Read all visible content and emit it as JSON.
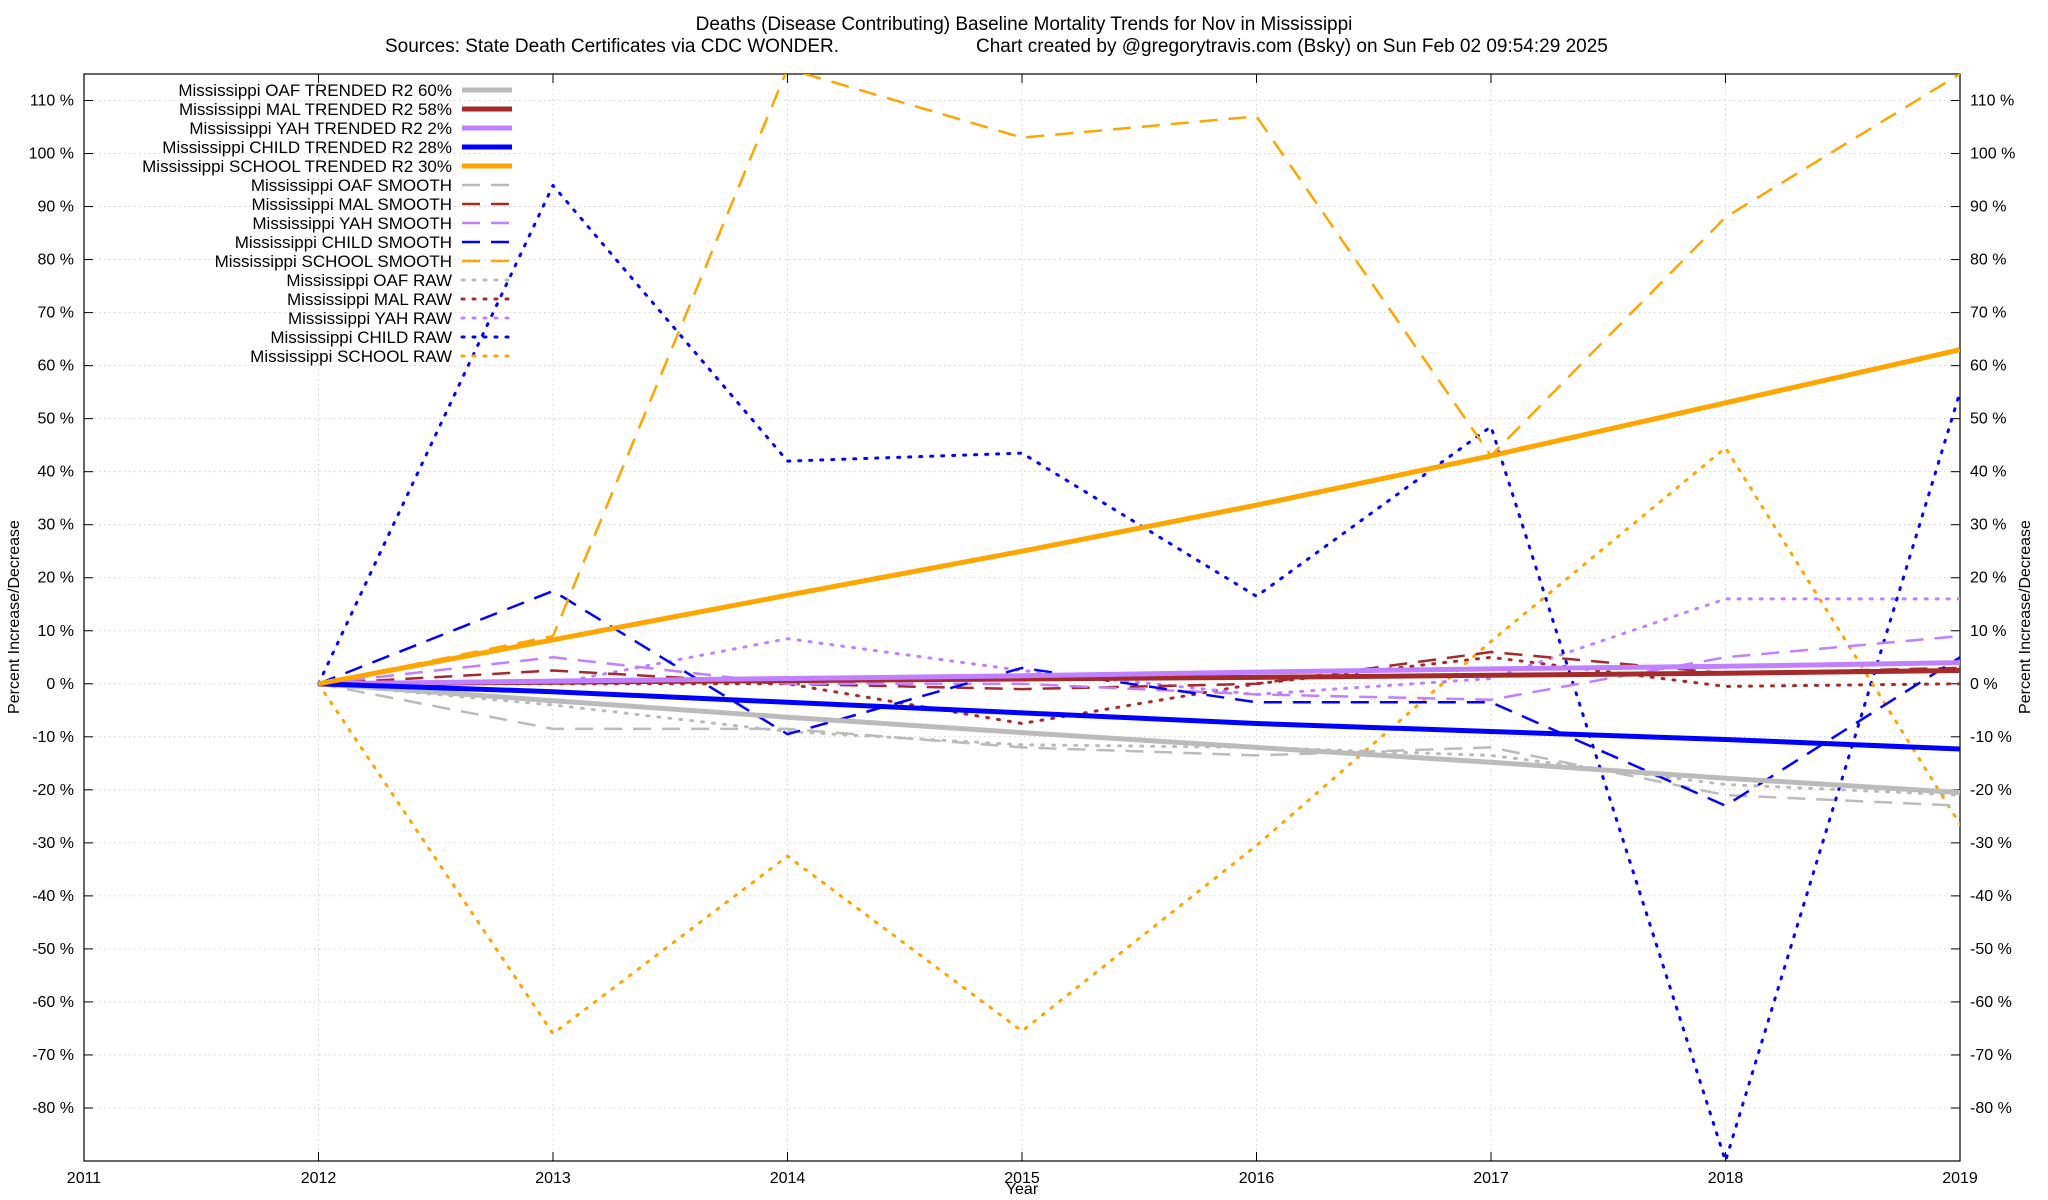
{
  "chart_data": {
    "type": "line",
    "title": "Deaths (Disease Contributing)  Baseline Mortality Trends for Nov in Mississippi",
    "subtitle_left": "Sources: State Death Certificates via CDC WONDER.",
    "subtitle_right": "Chart created by @gregorytravis.com (Bsky) on Sun Feb 02 09:54:29 2025",
    "xlabel": "Year",
    "ylabel_left": "Percent Increase/Decrease",
    "ylabel_right": "Percent Increase/Decrease",
    "xlim": [
      2011,
      2019
    ],
    "ylim": [
      -90,
      115
    ],
    "x_ticks": [
      "2011",
      "2012",
      "2013",
      "2014",
      "2015",
      "2016",
      "2017",
      "2018",
      "2019"
    ],
    "y_ticks": [
      {
        "v": 110,
        "label": "110 %"
      },
      {
        "v": 100,
        "label": "100 %"
      },
      {
        "v": 90,
        "label": "90 %"
      },
      {
        "v": 80,
        "label": "80 %"
      },
      {
        "v": 70,
        "label": "70 %"
      },
      {
        "v": 60,
        "label": "60 %"
      },
      {
        "v": 50,
        "label": "50 %"
      },
      {
        "v": 40,
        "label": "40 %"
      },
      {
        "v": 30,
        "label": "30 %"
      },
      {
        "v": 20,
        "label": "20 %"
      },
      {
        "v": 10,
        "label": "10 %"
      },
      {
        "v": 0,
        "label": "0 %"
      },
      {
        "v": -10,
        "label": "-10 %"
      },
      {
        "v": -20,
        "label": "-20 %"
      },
      {
        "v": -30,
        "label": "-30 %"
      },
      {
        "v": -40,
        "label": "-40 %"
      },
      {
        "v": -50,
        "label": "-50 %"
      },
      {
        "v": -60,
        "label": "-60 %"
      },
      {
        "v": -70,
        "label": "-70 %"
      },
      {
        "v": -80,
        "label": "-80 %"
      }
    ],
    "grid": true,
    "legend_position": "top-left",
    "x": [
      2012,
      2013,
      2014,
      2015,
      2016,
      2017,
      2018,
      2019
    ],
    "series": [
      {
        "name": "Mississippi OAF TRENDED R2  60%",
        "style": "solid",
        "width": 5,
        "color": "#bbbbbb",
        "values": [
          0,
          -3.2,
          -6.3,
          -9.2,
          -12,
          -14.8,
          -17.8,
          -20.5
        ]
      },
      {
        "name": "Mississippi MAL TRENDED R2  58%",
        "style": "solid",
        "width": 5,
        "color": "#a52a2a",
        "values": [
          0,
          0.3,
          0.6,
          0.9,
          1.2,
          1.6,
          2,
          2.5
        ]
      },
      {
        "name": "Mississippi YAH TRENDED R2   2%",
        "style": "solid",
        "width": 5,
        "color": "#c080ff",
        "values": [
          0,
          0.5,
          1,
          1.5,
          2.2,
          2.8,
          3.3,
          4
        ]
      },
      {
        "name": "Mississippi CHILD TRENDED R2  28%",
        "style": "solid",
        "width": 5,
        "color": "#0000ff",
        "values": [
          0,
          -1.5,
          -3.5,
          -5.5,
          -7.5,
          -9,
          -10.5,
          -12.3
        ]
      },
      {
        "name": "Mississippi SCHOOL TRENDED R2  30%",
        "style": "solid",
        "width": 5,
        "color": "#ffa500",
        "values": [
          0,
          8.3,
          16.7,
          25,
          33.7,
          43,
          53,
          63
        ]
      },
      {
        "name": "Mississippi OAF SMOOTH",
        "style": "dashed",
        "width": 2.5,
        "color": "#bbbbbb",
        "values": [
          0,
          -8.5,
          -8.5,
          -12,
          -13.5,
          -12,
          -21,
          -23
        ]
      },
      {
        "name": "Mississippi MAL SMOOTH",
        "style": "dashed",
        "width": 2.5,
        "color": "#a52a2a",
        "values": [
          0,
          2.5,
          0,
          -1,
          0,
          6,
          2,
          3
        ]
      },
      {
        "name": "Mississippi YAH SMOOTH",
        "style": "dashed",
        "width": 2.5,
        "color": "#c080ff",
        "values": [
          0,
          5,
          0,
          0,
          -2,
          -3,
          5,
          9
        ]
      },
      {
        "name": "Mississippi CHILD SMOOTH",
        "style": "dashed",
        "width": 2.5,
        "color": "#0000ff",
        "values": [
          0,
          17.5,
          -9.5,
          3,
          -3.5,
          -3.5,
          -23,
          5
        ]
      },
      {
        "name": "Mississippi SCHOOL SMOOTH",
        "style": "dashed",
        "width": 2.5,
        "color": "#ffa500",
        "values": [
          0,
          9,
          116,
          103,
          107,
          43,
          88,
          115
        ]
      },
      {
        "name": "Mississippi OAF RAW",
        "style": "dotted",
        "width": 3,
        "color": "#bbbbbb",
        "values": [
          0,
          -4,
          -9,
          -11.5,
          -12,
          -13.5,
          -19,
          -21
        ]
      },
      {
        "name": "Mississippi MAL RAW",
        "style": "dotted",
        "width": 3,
        "color": "#a52a2a",
        "values": [
          0,
          0,
          0,
          -7.5,
          0,
          5,
          -0.5,
          0
        ]
      },
      {
        "name": "Mississippi YAH RAW",
        "style": "dotted",
        "width": 3,
        "color": "#c080ff",
        "values": [
          0,
          0,
          8.5,
          2.5,
          -2,
          1,
          16,
          16
        ]
      },
      {
        "name": "Mississippi CHILD RAW",
        "style": "dotted",
        "width": 3,
        "color": "#0000ff",
        "values": [
          0,
          94,
          42,
          43.5,
          16.5,
          48.5,
          -90,
          55
        ]
      },
      {
        "name": "Mississippi SCHOOL RAW",
        "style": "dotted",
        "width": 3,
        "color": "#ffa500",
        "values": [
          0,
          -66,
          -32.5,
          -65.5,
          -30.5,
          8,
          44.5,
          -26.5
        ]
      }
    ]
  }
}
